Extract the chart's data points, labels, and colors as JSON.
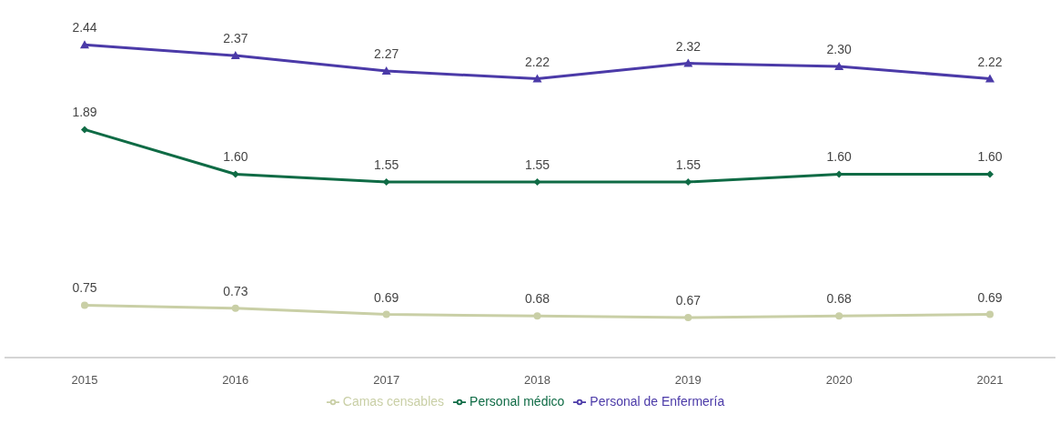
{
  "chart_data": {
    "type": "line",
    "categories": [
      "2015",
      "2016",
      "2017",
      "2018",
      "2019",
      "2020",
      "2021"
    ],
    "series": [
      {
        "name": "Camas censables",
        "color": "#c9cfa6",
        "marker": "circle",
        "values": [
          0.75,
          0.73,
          0.69,
          0.68,
          0.67,
          0.68,
          0.69
        ],
        "value_labels": [
          "0.75",
          "0.73",
          "0.69",
          "0.68",
          "0.67",
          "0.68",
          "0.69"
        ]
      },
      {
        "name": "Personal médico",
        "color": "#0f6b45",
        "marker": "diamond",
        "values": [
          1.89,
          1.6,
          1.55,
          1.55,
          1.55,
          1.6,
          1.6
        ],
        "value_labels": [
          "1.89",
          "1.60",
          "1.55",
          "1.55",
          "1.55",
          "1.60",
          "1.60"
        ]
      },
      {
        "name": "Personal de Enfermería",
        "color": "#4b3aa8",
        "marker": "triangle",
        "values": [
          2.44,
          2.37,
          2.27,
          2.22,
          2.32,
          2.3,
          2.22
        ],
        "value_labels": [
          "2.44",
          "2.37",
          "2.27",
          "2.22",
          "2.32",
          "2.30",
          "2.22"
        ]
      }
    ],
    "tick_labels": "x",
    "legend": "bottom"
  }
}
